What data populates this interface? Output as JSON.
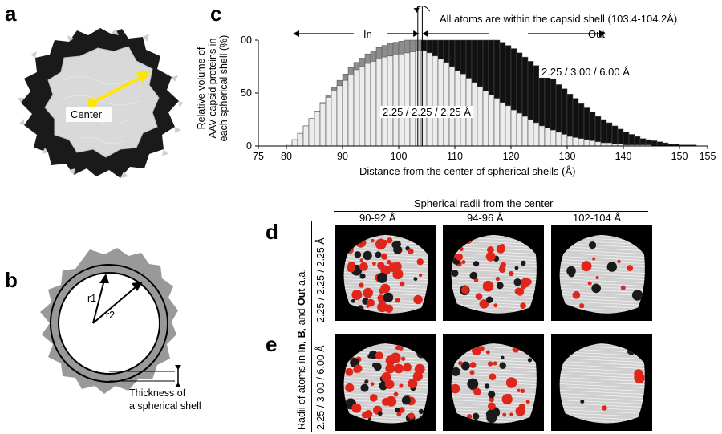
{
  "panels": {
    "a": {
      "letter": "a",
      "center_label": "Center",
      "colors": {
        "shell": "#1a1a1a",
        "core": "#d9d9d9",
        "arrow": "#ffe600",
        "spikes": "#cfcfcf"
      }
    },
    "b": {
      "letter": "b",
      "r1_label": "r1",
      "r2_label": "r2",
      "thickness_label_line1": "Thickness of",
      "thickness_label_line2": "a spherical shell",
      "colors": {
        "shape": "#999999"
      }
    },
    "c": {
      "letter": "c",
      "annotation": "All atoms are within the capsid shell (103.4-104.2Å)",
      "in_label": "In",
      "out_label": "Out",
      "series_label_dark": "2.25 / 3.00 / 6.00 Å",
      "series_label_light": "2.25 / 2.25 / 2.25 Å",
      "ylabel_line1": "Relative volume of",
      "ylabel_line2": "AAV capsid proteins in",
      "ylabel_line3": "each spherical shell (%)",
      "xlabel": "Distance from the center of spherical shells (Å)",
      "x_ticks": [
        "75",
        "80",
        "90",
        "100",
        "110",
        "120",
        "130",
        "140",
        "150",
        "155"
      ],
      "y_ticks": [
        "0",
        "50",
        "100"
      ]
    },
    "d": {
      "letter": "d",
      "row_label": "2.25 / 2.25 / 2.25 Å"
    },
    "e": {
      "letter": "e",
      "row_label": "2.25 / 3.00 / 6.00 Å"
    },
    "grid": {
      "header": "Spherical radii from the center",
      "columns": [
        "90-92 Å",
        "94-96 Å",
        "102-104 Å"
      ],
      "side_label_pre": "Radii of atoms in ",
      "side_in": "In",
      "side_comma1": ", ",
      "side_b": "B",
      "side_and": ", and ",
      "side_out": "Out",
      "side_post": " a.a."
    }
  },
  "chart_data": {
    "type": "bar",
    "xlabel": "Distance from the center of spherical shells (Å)",
    "ylabel": "Relative volume of AAV capsid proteins in each spherical shell (%)",
    "xlim": [
      75,
      155
    ],
    "ylim": [
      0,
      100
    ],
    "bin_width": 1,
    "x": [
      80,
      81,
      82,
      83,
      84,
      85,
      86,
      87,
      88,
      89,
      90,
      91,
      92,
      93,
      94,
      95,
      96,
      97,
      98,
      99,
      100,
      101,
      102,
      103,
      104,
      105,
      106,
      107,
      108,
      109,
      110,
      111,
      112,
      113,
      114,
      115,
      116,
      117,
      118,
      119,
      120,
      121,
      122,
      123,
      124,
      125,
      126,
      127,
      128,
      129,
      130,
      131,
      132,
      133,
      134,
      135,
      136,
      137,
      138,
      139,
      140,
      141,
      142,
      143,
      144,
      145,
      146,
      147,
      148,
      149,
      150,
      151,
      152,
      153,
      154
    ],
    "series": [
      {
        "name": "2.25 / 2.25 / 2.25 Å",
        "values": [
          2,
          6,
          12,
          19,
          26,
          33,
          40,
          46,
          52,
          57,
          62,
          67,
          72,
          75,
          78,
          80,
          82,
          84,
          85,
          86,
          87,
          88,
          89,
          90,
          90,
          88,
          85,
          82,
          79,
          75,
          71,
          68,
          64,
          60,
          56,
          52,
          48,
          45,
          41,
          38,
          34,
          31,
          28,
          25,
          22,
          19,
          17,
          15,
          13,
          11,
          9,
          8,
          7,
          6,
          5,
          4,
          3,
          3,
          2,
          2,
          1,
          1,
          1,
          1,
          1,
          0,
          0,
          0,
          0,
          0,
          0,
          0,
          0,
          0,
          0
        ]
      },
      {
        "name": "2.25 / 3.00 / 6.00 Å",
        "values": [
          2,
          6,
          12,
          19,
          26,
          33,
          41,
          48,
          55,
          62,
          68,
          74,
          79,
          83,
          87,
          90,
          93,
          95,
          97,
          98,
          99,
          100,
          100,
          100,
          100,
          100,
          100,
          100,
          100,
          100,
          100,
          100,
          100,
          100,
          100,
          100,
          100,
          100,
          98,
          95,
          92,
          88,
          84,
          80,
          76,
          72,
          68,
          63,
          58,
          54,
          49,
          45,
          40,
          36,
          32,
          28,
          25,
          22,
          19,
          16,
          13,
          11,
          9,
          7,
          6,
          5,
          4,
          3,
          2,
          2,
          1,
          1,
          1,
          0,
          0
        ]
      }
    ]
  }
}
